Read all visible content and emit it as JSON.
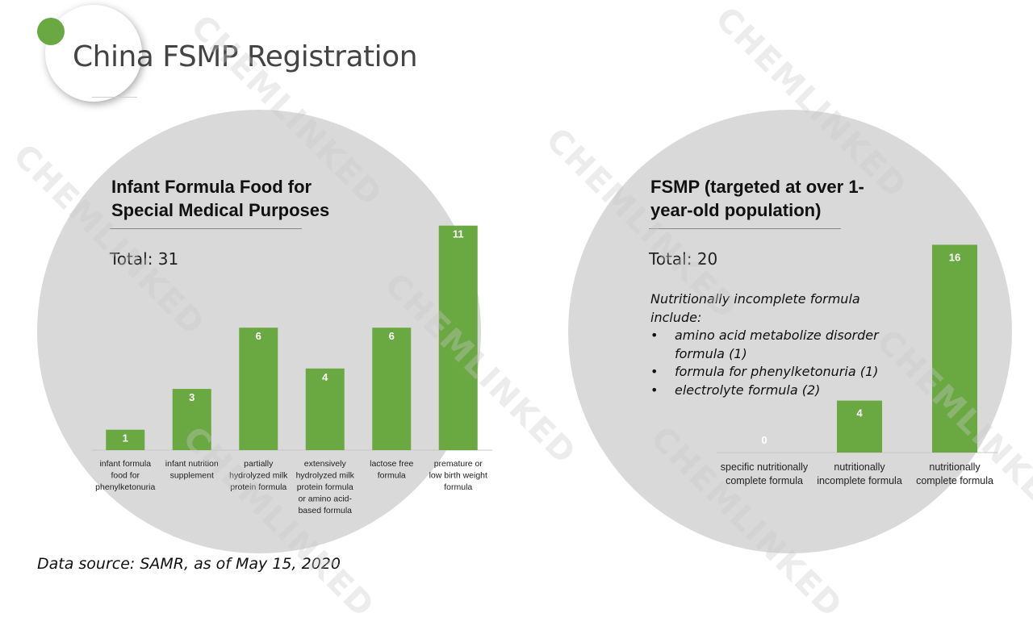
{
  "page": {
    "title": "China FSMP Registration",
    "source": "Data source: SAMR, as of May 15, 2020",
    "watermark": "CHEMLINKED",
    "accent_color": "#6aa842",
    "circle_color": "#d9d9d9"
  },
  "chart_data": [
    {
      "type": "bar",
      "title": "Infant Formula Food for Special Medical Purposes",
      "total_label": "Total: 31",
      "categories": [
        "infant formula food for phenylketonuria",
        "infant nutrition supplement",
        "partially hydrolyzed milk protein formula",
        "extensively hydrolyzed milk protein formula or amino acid-based formula",
        "lactose free formula",
        "premature or low birth weight formula"
      ],
      "category_lines": [
        [
          "infant formula",
          "food for",
          "phenylketonuria"
        ],
        [
          "infant nutrition",
          "supplement"
        ],
        [
          "partially",
          "hydrolyzed milk",
          "protein formula"
        ],
        [
          "extensively",
          "hydrolyzed milk",
          "protein formula",
          "or amino acid-",
          "based formula"
        ],
        [
          "lactose free",
          "formula"
        ],
        [
          "premature or",
          "low birth weight",
          "formula"
        ]
      ],
      "values": [
        1,
        3,
        6,
        4,
        6,
        11
      ],
      "color": "#6aa842"
    },
    {
      "type": "bar",
      "title": "FSMP (targeted at over 1-year-old population)",
      "total_label": "Total: 20",
      "categories": [
        "specific nutritionally complete formula",
        "nutritionally incomplete formula",
        "nutritionally complete formula"
      ],
      "category_lines": [
        [
          "specific nutritionally",
          "complete formula"
        ],
        [
          "nutritionally",
          "incomplete formula"
        ],
        [
          "nutritionally",
          "complete formula"
        ]
      ],
      "values": [
        0,
        4,
        16
      ],
      "color": "#6aa842",
      "note": {
        "lead": "Nutritionally incomplete formula include:",
        "items": [
          "amino acid metabolize disorder formula (1)",
          "formula for phenylketonuria (1)",
          "electrolyte formula (2)"
        ]
      }
    }
  ]
}
